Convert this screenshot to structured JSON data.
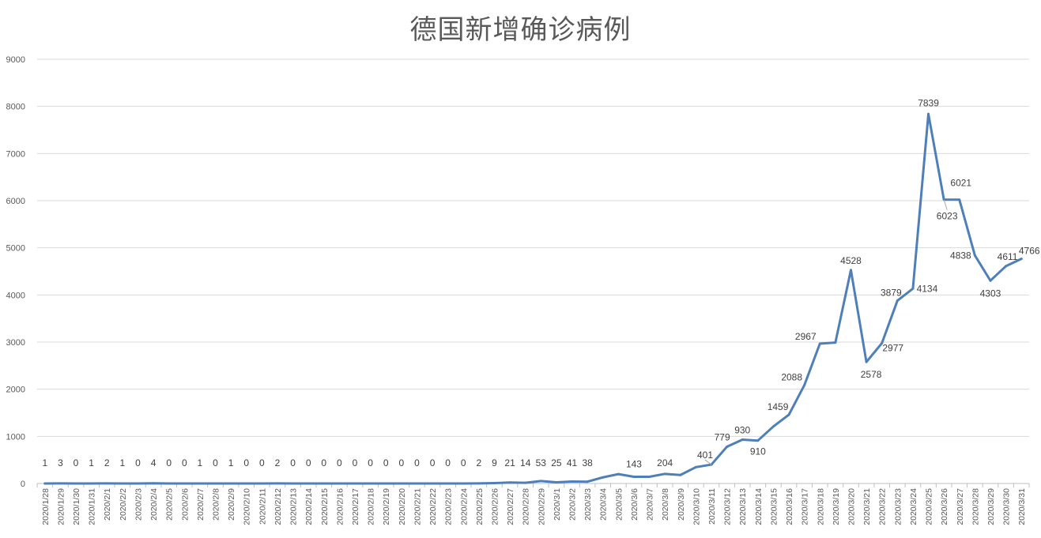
{
  "chart_data": {
    "type": "line",
    "title": "德国新增确诊病例",
    "xlabel": "",
    "ylabel": "",
    "ylim": [
      0,
      9000
    ],
    "yticks": [
      0,
      1000,
      2000,
      3000,
      4000,
      5000,
      6000,
      7000,
      8000,
      9000
    ],
    "grid": true,
    "legend": "none",
    "line_color": "#4f7fb8",
    "categories": [
      "2020/1/28",
      "2020/1/29",
      "2020/1/30",
      "2020/1/31",
      "2020/2/1",
      "2020/2/2",
      "2020/2/3",
      "2020/2/4",
      "2020/2/5",
      "2020/2/6",
      "2020/2/7",
      "2020/2/8",
      "2020/2/9",
      "2020/2/10",
      "2020/2/11",
      "2020/2/12",
      "2020/2/13",
      "2020/2/14",
      "2020/2/15",
      "2020/2/16",
      "2020/2/17",
      "2020/2/18",
      "2020/2/19",
      "2020/2/20",
      "2020/2/21",
      "2020/2/22",
      "2020/2/23",
      "2020/2/24",
      "2020/2/25",
      "2020/2/26",
      "2020/2/27",
      "2020/2/28",
      "2020/2/29",
      "2020/3/1",
      "2020/3/2",
      "2020/3/3",
      "2020/3/4",
      "2020/3/5",
      "2020/3/6",
      "2020/3/7",
      "2020/3/8",
      "2020/3/9",
      "2020/3/10",
      "2020/3/11",
      "2020/3/12",
      "2020/3/13",
      "2020/3/14",
      "2020/3/15",
      "2020/3/16",
      "2020/3/17",
      "2020/3/18",
      "2020/3/19",
      "2020/3/20",
      "2020/3/21",
      "2020/3/22",
      "2020/3/23",
      "2020/3/24",
      "2020/3/25",
      "2020/3/26",
      "2020/3/27",
      "2020/3/28",
      "2020/3/29",
      "2020/3/30",
      "2020/3/31"
    ],
    "series": [
      {
        "name": "",
        "values": [
          1,
          3,
          0,
          1,
          2,
          1,
          0,
          4,
          0,
          0,
          1,
          0,
          1,
          0,
          0,
          2,
          0,
          0,
          0,
          0,
          0,
          0,
          0,
          0,
          0,
          0,
          0,
          0,
          2,
          9,
          21,
          14,
          53,
          25,
          41,
          38,
          130,
          199,
          143,
          143,
          204,
          180,
          347,
          401,
          779,
          930,
          910,
          1210,
          1459,
          2088,
          2967,
          2990,
          4528,
          2578,
          2977,
          3879,
          4134,
          7839,
          6023,
          6021,
          4838,
          4303,
          4611,
          4766
        ]
      }
    ],
    "data_labels": [
      {
        "index": 0,
        "text": "1"
      },
      {
        "index": 1,
        "text": "3"
      },
      {
        "index": 2,
        "text": "0"
      },
      {
        "index": 3,
        "text": "1"
      },
      {
        "index": 4,
        "text": "2"
      },
      {
        "index": 5,
        "text": "1"
      },
      {
        "index": 6,
        "text": "0"
      },
      {
        "index": 7,
        "text": "4"
      },
      {
        "index": 8,
        "text": "0"
      },
      {
        "index": 9,
        "text": "0"
      },
      {
        "index": 10,
        "text": "1"
      },
      {
        "index": 11,
        "text": "0"
      },
      {
        "index": 12,
        "text": "1"
      },
      {
        "index": 13,
        "text": "0"
      },
      {
        "index": 14,
        "text": "0"
      },
      {
        "index": 15,
        "text": "2"
      },
      {
        "index": 16,
        "text": "0"
      },
      {
        "index": 17,
        "text": "0"
      },
      {
        "index": 18,
        "text": "0"
      },
      {
        "index": 19,
        "text": "0"
      },
      {
        "index": 20,
        "text": "0"
      },
      {
        "index": 21,
        "text": "0"
      },
      {
        "index": 22,
        "text": "0"
      },
      {
        "index": 23,
        "text": "0"
      },
      {
        "index": 24,
        "text": "0"
      },
      {
        "index": 25,
        "text": "0"
      },
      {
        "index": 26,
        "text": "0"
      },
      {
        "index": 27,
        "text": "0"
      },
      {
        "index": 28,
        "text": "2"
      },
      {
        "index": 29,
        "text": "9"
      },
      {
        "index": 30,
        "text": "21"
      },
      {
        "index": 31,
        "text": "14"
      },
      {
        "index": 32,
        "text": "53"
      },
      {
        "index": 33,
        "text": "25"
      },
      {
        "index": 34,
        "text": "41"
      },
      {
        "index": 35,
        "text": "38"
      },
      {
        "index": 38,
        "text": "143"
      },
      {
        "index": 40,
        "text": "204"
      },
      {
        "index": 43,
        "text": "401"
      },
      {
        "index": 44,
        "text": "779"
      },
      {
        "index": 45,
        "text": "930"
      },
      {
        "index": 46,
        "text": "910"
      },
      {
        "index": 48,
        "text": "1459"
      },
      {
        "index": 49,
        "text": "2088"
      },
      {
        "index": 50,
        "text": "2967"
      },
      {
        "index": 52,
        "text": "4528"
      },
      {
        "index": 53,
        "text": "2578"
      },
      {
        "index": 54,
        "text": "2977"
      },
      {
        "index": 55,
        "text": "3879"
      },
      {
        "index": 56,
        "text": "4134"
      },
      {
        "index": 57,
        "text": "7839"
      },
      {
        "index": 58,
        "text": "6023"
      },
      {
        "index": 59,
        "text": "6021"
      },
      {
        "index": 60,
        "text": "4838"
      },
      {
        "index": 61,
        "text": "4303"
      },
      {
        "index": 62,
        "text": "4611"
      },
      {
        "index": 63,
        "text": "4766"
      }
    ]
  }
}
